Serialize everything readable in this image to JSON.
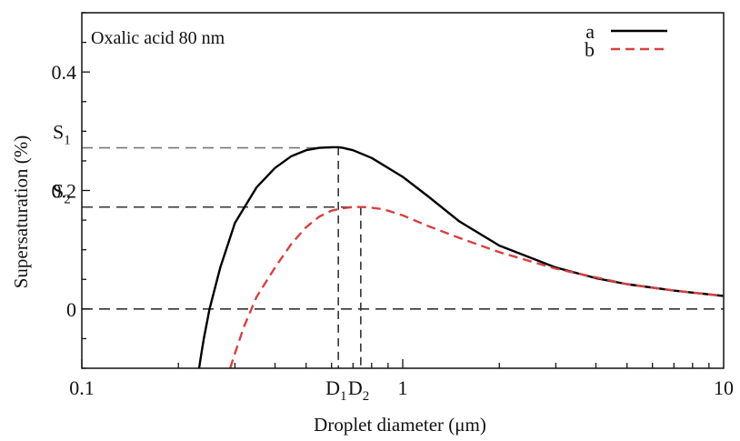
{
  "chart_data": {
    "type": "line",
    "annotation": "Oxalic acid 80 nm",
    "xlabel": "Droplet diameter (μm)",
    "ylabel": "Supersaturation (%)",
    "x_scale": "log",
    "xlim": [
      0.1,
      10
    ],
    "ylim": [
      -0.1,
      0.5
    ],
    "x_ticks": [
      {
        "value": 0.1,
        "label": "0.1"
      },
      {
        "value": 1,
        "label": "1"
      },
      {
        "value": 10,
        "label": "10"
      }
    ],
    "y_ticks": [
      {
        "value": 0,
        "label": "0"
      },
      {
        "value": 0.2,
        "label": "0.2"
      },
      {
        "value": 0.4,
        "label": "0.4"
      }
    ],
    "grid": false,
    "legend_position": "top-right",
    "series": [
      {
        "name": "a",
        "color": "#000000",
        "style": "solid",
        "x": [
          0.232,
          0.235,
          0.24,
          0.25,
          0.27,
          0.3,
          0.35,
          0.4,
          0.45,
          0.5,
          0.55,
          0.6,
          0.63,
          0.65,
          0.7,
          0.8,
          1.0,
          1.2,
          1.5,
          2.0,
          3.0,
          4.0,
          5.0,
          7.0,
          10.0
        ],
        "y": [
          -0.1,
          -0.08,
          -0.05,
          0.0,
          0.07,
          0.145,
          0.205,
          0.238,
          0.258,
          0.268,
          0.272,
          0.273,
          0.273,
          0.272,
          0.268,
          0.255,
          0.223,
          0.19,
          0.148,
          0.107,
          0.07,
          0.052,
          0.042,
          0.031,
          0.022
        ]
      },
      {
        "name": "b",
        "color": "#d94040",
        "style": "dashed",
        "x": [
          0.29,
          0.3,
          0.32,
          0.35,
          0.4,
          0.45,
          0.5,
          0.55,
          0.6,
          0.65,
          0.7,
          0.75,
          0.8,
          0.85,
          0.9,
          1.0,
          1.2,
          1.5,
          2.0,
          3.0,
          5.0,
          7.0,
          10.0
        ],
        "y": [
          -0.1,
          -0.075,
          -0.03,
          0.02,
          0.07,
          0.11,
          0.138,
          0.156,
          0.166,
          0.17,
          0.172,
          0.172,
          0.171,
          0.169,
          0.166,
          0.158,
          0.14,
          0.12,
          0.096,
          0.068,
          0.042,
          0.031,
          0.022
        ]
      }
    ],
    "reference_lines": [
      {
        "axis": "y",
        "value": 0.272,
        "label": "S",
        "subscript": "1"
      },
      {
        "axis": "y",
        "value": 0.172,
        "label": "S",
        "subscript": "2"
      },
      {
        "axis": "y",
        "value": 0,
        "label": ""
      },
      {
        "axis": "x",
        "value": 0.63,
        "label": "D",
        "subscript": "1"
      },
      {
        "axis": "x",
        "value": 0.74,
        "label": "D",
        "subscript": "2"
      }
    ]
  }
}
